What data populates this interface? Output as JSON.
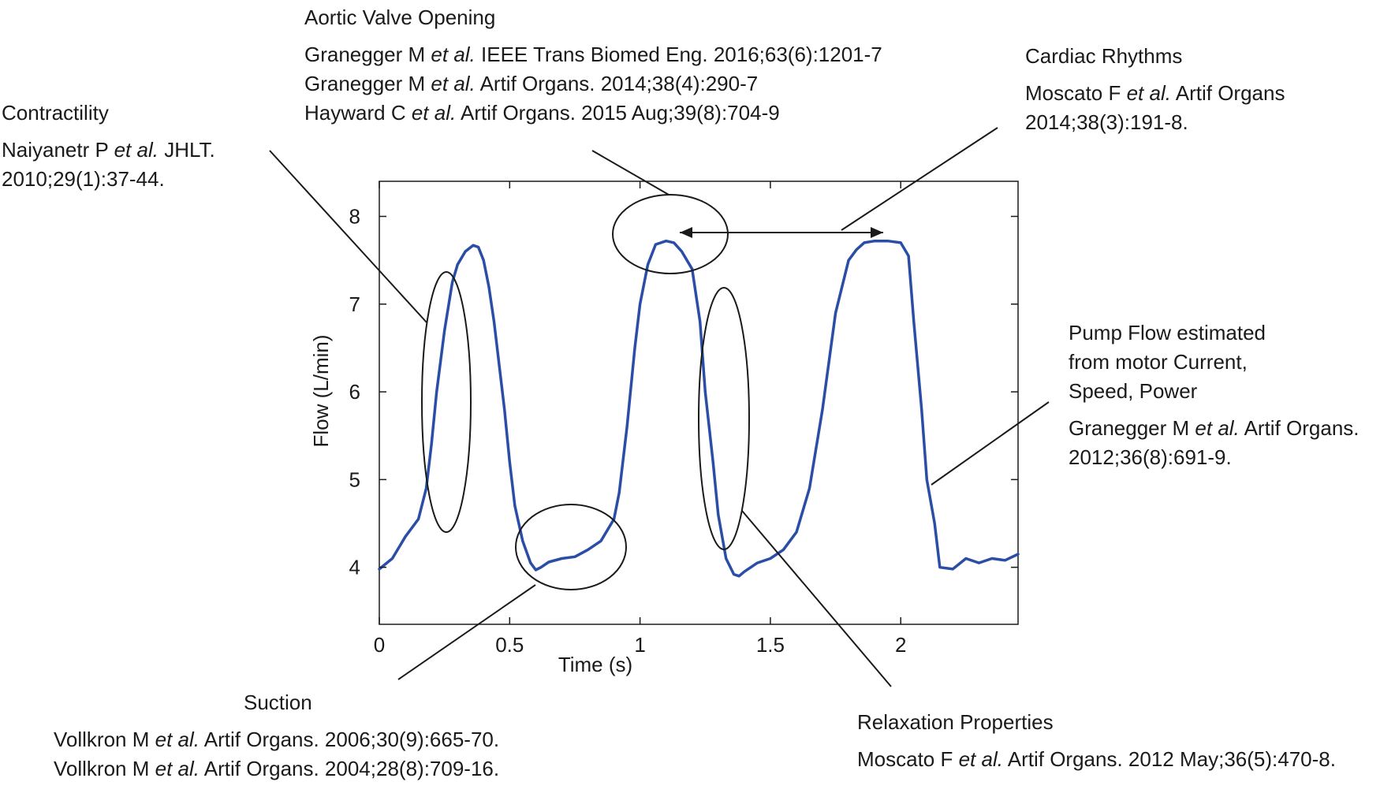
{
  "chart_data": {
    "type": "line",
    "title": "",
    "xlabel": "Time (s)",
    "ylabel": "Flow (L/min)",
    "xlim": [
      0,
      2.45
    ],
    "ylim": [
      3.35,
      8.4
    ],
    "xticks": [
      0,
      0.5,
      1,
      1.5,
      2
    ],
    "xtick_labels": [
      "0",
      "0.5",
      "1",
      "1.5",
      "2"
    ],
    "yticks": [
      4,
      5,
      6,
      7,
      8
    ],
    "ytick_labels": [
      "4",
      "5",
      "6",
      "7",
      "8"
    ],
    "grid": false,
    "legend": "none",
    "series": [
      {
        "color": "#2a4ea6",
        "x": [
          0,
          0.05,
          0.1,
          0.15,
          0.18,
          0.2,
          0.22,
          0.25,
          0.28,
          0.3,
          0.33,
          0.36,
          0.38,
          0.4,
          0.42,
          0.44,
          0.46,
          0.48,
          0.5,
          0.52,
          0.55,
          0.58,
          0.6,
          0.62,
          0.65,
          0.7,
          0.75,
          0.8,
          0.85,
          0.9,
          0.92,
          0.95,
          0.98,
          1.0,
          1.03,
          1.06,
          1.1,
          1.13,
          1.16,
          1.2,
          1.23,
          1.25,
          1.28,
          1.3,
          1.33,
          1.36,
          1.38,
          1.4,
          1.45,
          1.5,
          1.55,
          1.6,
          1.65,
          1.7,
          1.75,
          1.8,
          1.83,
          1.86,
          1.9,
          1.95,
          2.0,
          2.03,
          2.05,
          2.08,
          2.1,
          2.13,
          2.15,
          2.2,
          2.25,
          2.3,
          2.35,
          2.4,
          2.45
        ],
        "y": [
          3.98,
          4.1,
          4.35,
          4.55,
          4.9,
          5.4,
          6.0,
          6.7,
          7.25,
          7.45,
          7.6,
          7.67,
          7.65,
          7.5,
          7.2,
          6.8,
          6.3,
          5.8,
          5.2,
          4.7,
          4.3,
          4.05,
          3.97,
          4.0,
          4.06,
          4.1,
          4.12,
          4.2,
          4.3,
          4.55,
          4.85,
          5.6,
          6.5,
          7.0,
          7.45,
          7.68,
          7.72,
          7.7,
          7.6,
          7.4,
          6.8,
          6.0,
          5.2,
          4.6,
          4.1,
          3.92,
          3.9,
          3.95,
          4.05,
          4.1,
          4.2,
          4.4,
          4.9,
          5.8,
          6.9,
          7.5,
          7.62,
          7.7,
          7.72,
          7.72,
          7.7,
          7.55,
          6.8,
          5.8,
          5.0,
          4.5,
          4.0,
          3.98,
          4.1,
          4.05,
          4.1,
          4.08,
          4.15
        ]
      }
    ]
  },
  "annotations": {
    "aortic_valve": {
      "heading": "Aortic Valve Opening",
      "refs": [
        [
          "Granegger M ",
          "et al.",
          " IEEE Trans Biomed Eng. 2016;63(6):1201-7"
        ],
        [
          "Granegger M ",
          "et al.",
          " Artif Organs. 2014;38(4):290-7"
        ],
        [
          "Hayward C ",
          "et al.",
          " Artif Organs. 2015 Aug;39(8):704-9"
        ]
      ]
    },
    "cardiac_rhythms": {
      "heading": "Cardiac Rhythms",
      "refs": [
        [
          "Moscato F ",
          "et al.",
          " Artif Organs"
        ],
        [
          "2014;38(3):191-8.",
          "",
          ""
        ]
      ]
    },
    "contractility": {
      "heading": "Contractility",
      "refs": [
        [
          "Naiyanetr P ",
          "et al.",
          " JHLT."
        ],
        [
          "2010;29(1):37-44.",
          "",
          ""
        ]
      ]
    },
    "pump_flow": {
      "heading_lines": [
        "Pump Flow estimated",
        "from motor Current,",
        "Speed, Power"
      ],
      "refs": [
        [
          "Granegger M ",
          "et al.",
          " Artif Organs."
        ],
        [
          "2012;36(8):691-9.",
          "",
          ""
        ]
      ]
    },
    "suction": {
      "heading": "Suction",
      "refs": [
        [
          "Vollkron M ",
          "et al.",
          " Artif Organs. 2006;30(9):665-70."
        ],
        [
          "Vollkron M ",
          "et al.",
          " Artif Organs. 2004;28(8):709-16."
        ]
      ]
    },
    "relaxation": {
      "heading": "Relaxation Properties",
      "refs": [
        [
          "Moscato F ",
          "et al.",
          " Artif Organs. 2012 May;36(5):470-8."
        ]
      ]
    }
  }
}
